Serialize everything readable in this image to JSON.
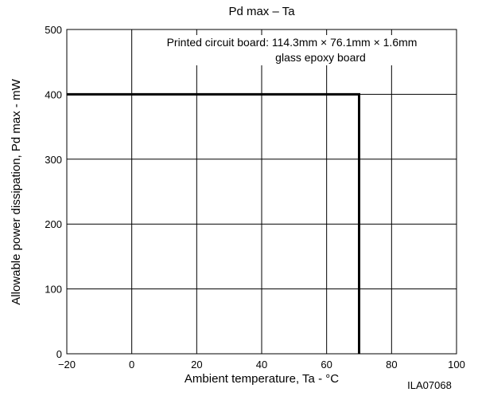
{
  "chart_data": {
    "type": "line",
    "title": "Pd max  –  Ta",
    "xlabel": "Ambient temperature, Ta - °C",
    "ylabel": "Allowable power dissipation, Pd max - mW",
    "xlim": [
      -20,
      100
    ],
    "ylim": [
      0,
      500
    ],
    "x_ticks": [
      -20,
      0,
      20,
      40,
      60,
      80,
      100
    ],
    "x_tick_labels": [
      "−20",
      "0",
      "20",
      "40",
      "60",
      "80",
      "100"
    ],
    "y_ticks": [
      0,
      100,
      200,
      300,
      400,
      500
    ],
    "y_tick_labels": [
      "0",
      "100",
      "200",
      "300",
      "400",
      "500"
    ],
    "grid": true,
    "series": [
      {
        "x": [
          -20,
          70,
          70
        ],
        "y": [
          400,
          400,
          0
        ]
      }
    ],
    "annotations": [
      "Printed circuit board: 114.3mm × 76.1mm × 1.6mm",
      "glass epoxy board"
    ],
    "figure_code": "ILA07068"
  }
}
